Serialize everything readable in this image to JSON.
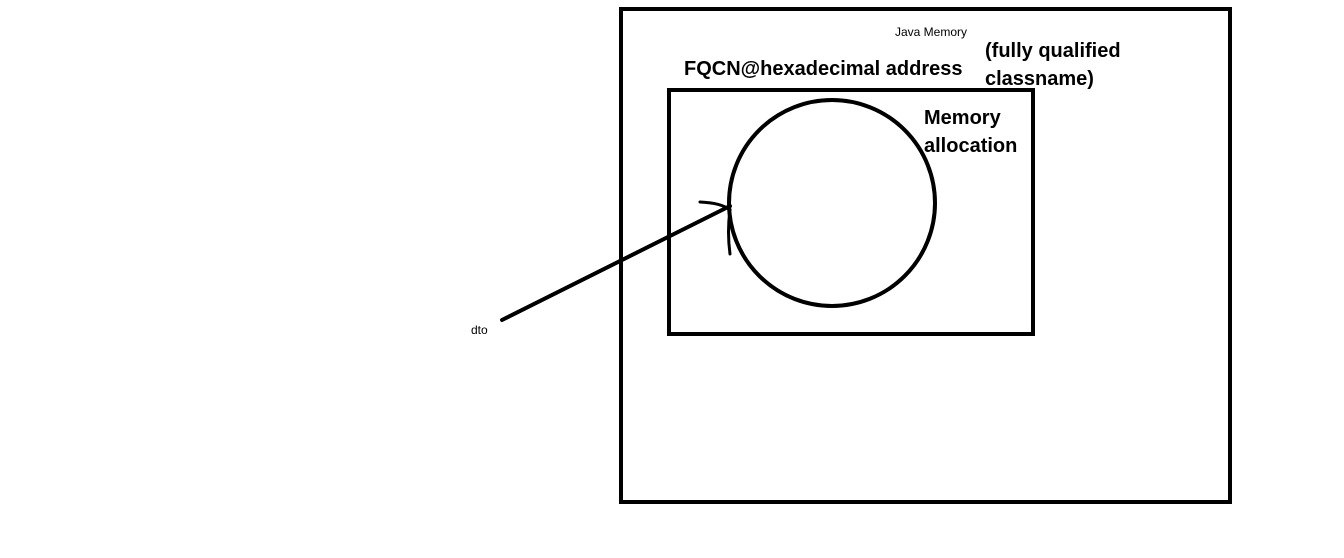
{
  "diagram": {
    "java_memory_label": "Java Memory",
    "fqcn_label": "FQCN@hexadecimal address",
    "fqcn_note_line1": "(fully qualified",
    "fqcn_note_line2": "classname)",
    "memory_allocation_line1": "Memory",
    "memory_allocation_line2": "allocation",
    "reference_label": "dto",
    "stroke_color": "#000000",
    "background_color": "#ffffff"
  }
}
